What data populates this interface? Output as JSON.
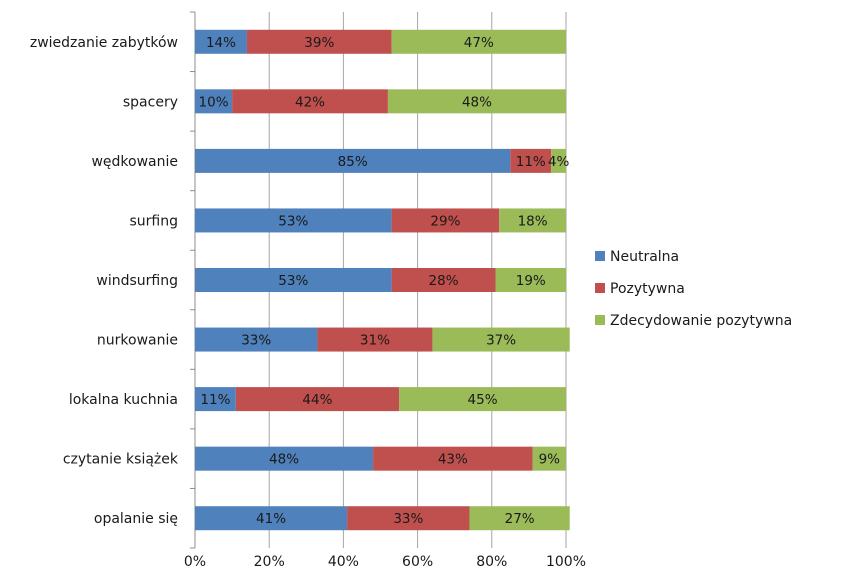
{
  "chart_data": {
    "type": "bar",
    "orientation": "horizontal",
    "stacked": "percent",
    "categories": [
      "zwiedzanie zabytków",
      "spacery",
      "wędkowanie",
      "surfing",
      "windsurfing",
      "nurkowanie",
      "lokalna kuchnia",
      "czytanie książek",
      "opalanie się"
    ],
    "series": [
      {
        "name": "Neutralna",
        "color": "#4F81BD",
        "values": [
          14,
          10,
          85,
          53,
          53,
          33,
          11,
          48,
          41
        ]
      },
      {
        "name": "Pozytywna",
        "color": "#C0504D",
        "values": [
          39,
          42,
          11,
          29,
          28,
          31,
          44,
          43,
          33
        ]
      },
      {
        "name": "Zdecydowanie pozytywna",
        "color": "#9BBB59",
        "values": [
          47,
          48,
          4,
          18,
          19,
          37,
          45,
          9,
          27
        ]
      }
    ],
    "data_labels": [
      [
        "14%",
        "39%",
        "47%"
      ],
      [
        "10%",
        "42%",
        "48%"
      ],
      [
        "85%",
        "11%",
        "4%"
      ],
      [
        "53%",
        "29%",
        "18%"
      ],
      [
        "53%",
        "28%",
        "19%"
      ],
      [
        "33%",
        "31%",
        "37%"
      ],
      [
        "11%",
        "44%",
        "45%"
      ],
      [
        "48%",
        "43%",
        "9%"
      ],
      [
        "41%",
        "33%",
        "27%"
      ]
    ],
    "x_ticks": [
      "0%",
      "20%",
      "40%",
      "60%",
      "80%",
      "100%"
    ],
    "xlim": [
      0,
      100
    ],
    "grid": "vertical",
    "legend_position": "right"
  }
}
